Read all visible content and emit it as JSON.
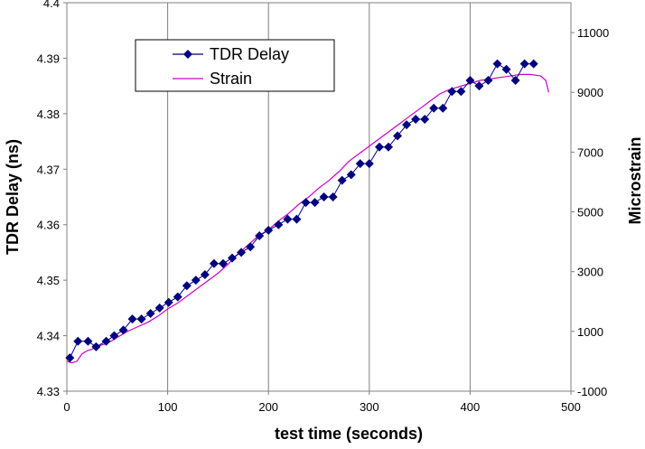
{
  "chart_data": {
    "type": "line",
    "title": "",
    "xlabel": "test time (seconds)",
    "ylabel": "TDR Delay (ns)",
    "y2label": "Microstrain",
    "xlim": [
      0,
      500
    ],
    "ylim": [
      4.33,
      4.4
    ],
    "y2lim": [
      -1000,
      12000
    ],
    "x_ticks": [
      "0",
      "100",
      "200",
      "300",
      "400",
      "500"
    ],
    "y_ticks": [
      "4.33",
      "4.34",
      "4.35",
      "4.36",
      "4.37",
      "4.38",
      "4.39",
      "4.4"
    ],
    "y2_ticks": [
      "-1000",
      "1000",
      "3000",
      "5000",
      "7000",
      "9000",
      "11000"
    ],
    "grid": "vertical",
    "legend": "top-left",
    "series": [
      {
        "name": "TDR Delay",
        "axis": "left",
        "color": "#000080",
        "marker": "diamond",
        "x": [
          3,
          11,
          21,
          29,
          39,
          47,
          56,
          65,
          74,
          83,
          92,
          101,
          110,
          119,
          128,
          137,
          146,
          155,
          164,
          173,
          182,
          191,
          200,
          210,
          219,
          228,
          237,
          246,
          255,
          264,
          273,
          282,
          291,
          300,
          310,
          319,
          328,
          337,
          346,
          355,
          364,
          373,
          382,
          391,
          400,
          409,
          418,
          427,
          436,
          445,
          454,
          463
        ],
        "y": [
          4.336,
          4.339,
          4.339,
          4.338,
          4.339,
          4.34,
          4.341,
          4.343,
          4.343,
          4.344,
          4.345,
          4.346,
          4.347,
          4.349,
          4.35,
          4.351,
          4.353,
          4.353,
          4.354,
          4.355,
          4.356,
          4.358,
          4.359,
          4.36,
          4.361,
          4.361,
          4.364,
          4.364,
          4.365,
          4.365,
          4.368,
          4.369,
          4.371,
          4.371,
          4.374,
          4.374,
          4.376,
          4.378,
          4.379,
          4.379,
          4.381,
          4.381,
          4.384,
          4.384,
          4.386,
          4.385,
          4.386,
          4.389,
          4.388,
          4.386,
          4.389,
          4.389
        ]
      },
      {
        "name": "Strain",
        "axis": "right",
        "color": "#cc00cc",
        "x": [
          0,
          5,
          10,
          15,
          20,
          25,
          30,
          40,
          50,
          60,
          70,
          80,
          90,
          100,
          110,
          120,
          130,
          140,
          150,
          160,
          170,
          180,
          190,
          200,
          210,
          220,
          230,
          240,
          250,
          260,
          270,
          280,
          290,
          300,
          310,
          320,
          330,
          340,
          350,
          360,
          370,
          380,
          390,
          400,
          410,
          420,
          430,
          440,
          450,
          460,
          470,
          475,
          478
        ],
        "y": [
          0,
          -50,
          0,
          250,
          350,
          400,
          500,
          600,
          800,
          1000,
          1150,
          1300,
          1500,
          1750,
          1950,
          2200,
          2450,
          2700,
          2950,
          3250,
          3600,
          3900,
          4200,
          4400,
          4700,
          4950,
          5250,
          5500,
          5800,
          6050,
          6350,
          6700,
          6950,
          7200,
          7450,
          7700,
          7950,
          8200,
          8450,
          8700,
          8950,
          9100,
          9200,
          9300,
          9400,
          9450,
          9500,
          9550,
          9600,
          9600,
          9550,
          9400,
          9000
        ]
      }
    ]
  }
}
